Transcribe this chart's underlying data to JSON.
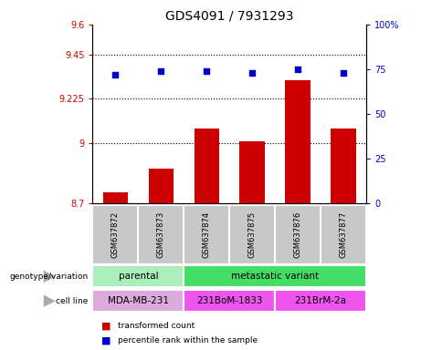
{
  "title": "GDS4091 / 7931293",
  "samples": [
    "GSM637872",
    "GSM637873",
    "GSM637874",
    "GSM637875",
    "GSM637876",
    "GSM637877"
  ],
  "bar_values": [
    8.755,
    8.875,
    9.075,
    9.01,
    9.32,
    9.075
  ],
  "percentile_values": [
    72,
    74,
    74,
    73,
    75,
    73
  ],
  "bar_color": "#cc0000",
  "percentile_color": "#0000cc",
  "ylim_left": [
    8.7,
    9.6
  ],
  "ylim_right": [
    0,
    100
  ],
  "yticks_left": [
    8.7,
    9.0,
    9.225,
    9.45,
    9.6
  ],
  "ytick_labels_left": [
    "8.7",
    "9",
    "9.225",
    "9.45",
    "9.6"
  ],
  "yticks_right": [
    0,
    25,
    50,
    75,
    100
  ],
  "ytick_labels_right": [
    "0",
    "25",
    "50",
    "75",
    "100%"
  ],
  "hlines": [
    9.0,
    9.225,
    9.45
  ],
  "genotype_groups": [
    {
      "label": "parental",
      "cols": [
        0,
        1
      ],
      "color": "#aaeebb"
    },
    {
      "label": "metastatic variant",
      "cols": [
        2,
        3,
        4,
        5
      ],
      "color": "#44dd66"
    }
  ],
  "cell_line_groups": [
    {
      "label": "MDA-MB-231",
      "cols": [
        0,
        1
      ],
      "color": "#ddaadd"
    },
    {
      "label": "231BoM-1833",
      "cols": [
        2,
        3
      ],
      "color": "#ee55ee"
    },
    {
      "label": "231BrM-2a",
      "cols": [
        4,
        5
      ],
      "color": "#ee55ee"
    }
  ],
  "legend_items": [
    {
      "label": "transformed count",
      "color": "#cc0000"
    },
    {
      "label": "percentile rank within the sample",
      "color": "#0000cc"
    }
  ],
  "background_fig": "#ffffff",
  "sample_box_color": "#c8c8c8",
  "sample_box_sep_color": "#ffffff"
}
